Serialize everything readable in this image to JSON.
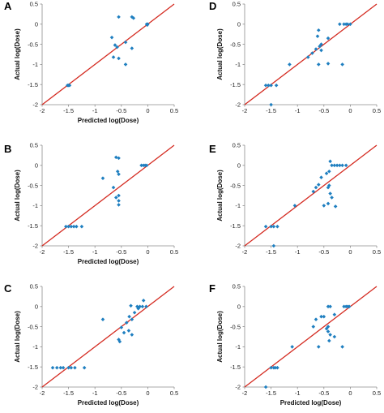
{
  "colors": {
    "marker": "#1f7fc0",
    "fit_line": "#d42a20",
    "axis": "#8c8c8c"
  },
  "chart_data": [
    {
      "panel": "A",
      "type": "scatter",
      "xlabel": "Predicted log(Dose)",
      "ylabel": "Actual log(Dose)",
      "xlim": [
        -2,
        0.5
      ],
      "ylim": [
        -2,
        0.5
      ],
      "xticks": [
        "-2",
        "-1.5",
        "-1",
        "-0.5",
        "0",
        "0.5"
      ],
      "yticks": [
        "-2",
        "-1.5",
        "-1",
        "-0.5",
        "0",
        "0.5"
      ],
      "fit_line": [
        [
          -2,
          -2
        ],
        [
          0.5,
          0.5
        ]
      ],
      "points": [
        [
          -1.52,
          -1.52
        ],
        [
          -1.5,
          -1.52
        ],
        [
          -1.48,
          -1.52
        ],
        [
          -0.68,
          -0.33
        ],
        [
          -0.62,
          -0.52
        ],
        [
          -0.58,
          -0.57
        ],
        [
          -0.65,
          -0.82
        ],
        [
          -0.55,
          -0.85
        ],
        [
          -0.55,
          0.18
        ],
        [
          -0.3,
          0.18
        ],
        [
          -0.27,
          0.15
        ],
        [
          -0.42,
          -0.45
        ],
        [
          -0.3,
          -0.6
        ],
        [
          -0.42,
          -1.0
        ],
        [
          -0.02,
          0.0
        ],
        [
          0.0,
          0.0
        ],
        [
          -0.01,
          -0.02
        ]
      ]
    },
    {
      "panel": "D",
      "type": "scatter",
      "xlabel": "",
      "ylabel": "Actual log(Dose)",
      "xlim": [
        -2,
        0.5
      ],
      "ylim": [
        -2,
        0.5
      ],
      "xticks": [
        "-2",
        "-1.5",
        "-1",
        "-0.5",
        "0",
        "0.5"
      ],
      "yticks": [
        "-2",
        "-1.5",
        "-1",
        "-0.5",
        "0",
        "0.5"
      ],
      "fit_line": [
        [
          -2,
          -2
        ],
        [
          0.5,
          0.5
        ]
      ],
      "points": [
        [
          -1.6,
          -1.52
        ],
        [
          -1.55,
          -1.52
        ],
        [
          -1.5,
          -1.52
        ],
        [
          -1.4,
          -1.52
        ],
        [
          -1.5,
          -2.0
        ],
        [
          -1.15,
          -1.0
        ],
        [
          -0.8,
          -0.82
        ],
        [
          -0.72,
          -0.72
        ],
        [
          -0.65,
          -0.62
        ],
        [
          -0.62,
          -0.3
        ],
        [
          -0.6,
          -0.15
        ],
        [
          -0.55,
          -0.5
        ],
        [
          -0.58,
          -0.55
        ],
        [
          -0.55,
          -0.65
        ],
        [
          -0.42,
          -0.35
        ],
        [
          -0.42,
          -0.98
        ],
        [
          -0.6,
          -1.0
        ],
        [
          -0.15,
          -1.0
        ],
        [
          -0.2,
          0.0
        ],
        [
          -0.12,
          0.0
        ],
        [
          -0.05,
          0.0
        ],
        [
          0.0,
          0.0
        ],
        [
          -0.08,
          0.0
        ]
      ]
    },
    {
      "panel": "B",
      "type": "scatter",
      "xlabel": "Predicted log(Dose)",
      "ylabel": "Actual log(Dose)",
      "xlim": [
        -2,
        0.5
      ],
      "ylim": [
        -2,
        0.5
      ],
      "xticks": [
        "-2",
        "-1.5",
        "-1",
        "-0.5",
        "0",
        "0.5"
      ],
      "yticks": [
        "-2",
        "-1.5",
        "-1",
        "-0.5",
        "0",
        "0.5"
      ],
      "fit_line": [
        [
          -2,
          -2
        ],
        [
          0.5,
          0.5
        ]
      ],
      "points": [
        [
          -1.55,
          -1.52
        ],
        [
          -1.5,
          -1.52
        ],
        [
          -1.45,
          -1.52
        ],
        [
          -1.4,
          -1.52
        ],
        [
          -1.35,
          -1.52
        ],
        [
          -1.25,
          -1.52
        ],
        [
          -0.85,
          -0.32
        ],
        [
          -0.65,
          -0.55
        ],
        [
          -0.6,
          0.2
        ],
        [
          -0.55,
          0.18
        ],
        [
          -0.57,
          -0.15
        ],
        [
          -0.55,
          -0.22
        ],
        [
          -0.55,
          -0.75
        ],
        [
          -0.6,
          -0.8
        ],
        [
          -0.55,
          -0.88
        ],
        [
          -0.55,
          -0.98
        ],
        [
          -0.12,
          0.0
        ],
        [
          -0.08,
          0.0
        ],
        [
          -0.05,
          0.0
        ],
        [
          -0.02,
          0.0
        ]
      ]
    },
    {
      "panel": "E",
      "type": "scatter",
      "xlabel": "",
      "ylabel": "Actual log(Dose)",
      "xlim": [
        -2,
        0.5
      ],
      "ylim": [
        -2,
        0.5
      ],
      "xticks": [
        "-2",
        "-1.5",
        "-1",
        "-0.5",
        "0",
        "0.5"
      ],
      "yticks": [
        "-2",
        "-1.5",
        "-1",
        "-0.5",
        "0",
        "0.5"
      ],
      "fit_line": [
        [
          -2,
          -2
        ],
        [
          0.5,
          0.5
        ]
      ],
      "points": [
        [
          -1.6,
          -1.52
        ],
        [
          -1.5,
          -1.52
        ],
        [
          -1.45,
          -1.52
        ],
        [
          -1.38,
          -1.52
        ],
        [
          -1.45,
          -2.0
        ],
        [
          -1.05,
          -1.0
        ],
        [
          -0.7,
          -0.65
        ],
        [
          -0.65,
          -0.55
        ],
        [
          -0.6,
          -0.48
        ],
        [
          -0.55,
          -0.3
        ],
        [
          -0.45,
          -0.2
        ],
        [
          -0.4,
          -0.15
        ],
        [
          -0.42,
          -0.55
        ],
        [
          -0.38,
          -0.7
        ],
        [
          -0.35,
          -0.8
        ],
        [
          -0.42,
          -0.95
        ],
        [
          -0.5,
          -1.0
        ],
        [
          -0.28,
          -1.02
        ],
        [
          -0.35,
          0.0
        ],
        [
          -0.3,
          0.0
        ],
        [
          -0.25,
          0.0
        ],
        [
          -0.2,
          0.0
        ],
        [
          -0.15,
          0.0
        ],
        [
          -0.08,
          0.0
        ],
        [
          -0.4,
          -0.5
        ],
        [
          -0.38,
          0.1
        ]
      ]
    },
    {
      "panel": "C",
      "type": "scatter",
      "xlabel": "Predicted log(Dose)",
      "ylabel": "Actual log(Dose)",
      "xlim": [
        -2,
        0.5
      ],
      "ylim": [
        -2,
        0.5
      ],
      "xticks": [
        "-2",
        "-1.5",
        "-1",
        "-0.5",
        "0",
        "0.5"
      ],
      "yticks": [
        "-2",
        "-1.5",
        "-1",
        "-0.5",
        "0",
        "0.5"
      ],
      "fit_line": [
        [
          -2,
          -2
        ],
        [
          0.5,
          0.5
        ]
      ],
      "points": [
        [
          -1.8,
          -1.52
        ],
        [
          -1.72,
          -1.52
        ],
        [
          -1.65,
          -1.52
        ],
        [
          -1.6,
          -1.52
        ],
        [
          -1.5,
          -1.52
        ],
        [
          -1.45,
          -1.52
        ],
        [
          -1.38,
          -1.52
        ],
        [
          -1.2,
          -1.52
        ],
        [
          -0.85,
          -0.32
        ],
        [
          -0.55,
          -0.82
        ],
        [
          -0.53,
          -0.87
        ],
        [
          -0.5,
          -0.52
        ],
        [
          -0.45,
          -0.65
        ],
        [
          -0.4,
          -0.4
        ],
        [
          -0.35,
          -0.25
        ],
        [
          -0.3,
          -0.7
        ],
        [
          -0.3,
          -0.32
        ],
        [
          -0.25,
          -0.15
        ],
        [
          -0.2,
          0.0
        ],
        [
          -0.18,
          -0.05
        ],
        [
          -0.15,
          0.0
        ],
        [
          -0.1,
          0.0
        ],
        [
          -0.08,
          0.15
        ],
        [
          -0.03,
          0.0
        ],
        [
          -0.32,
          0.02
        ],
        [
          -0.36,
          -0.6
        ]
      ]
    },
    {
      "panel": "F",
      "type": "scatter",
      "xlabel": "Predicted log(Dose)",
      "ylabel": "Actual log(Dose)",
      "xlim": [
        -2,
        0.5
      ],
      "ylim": [
        -2,
        0.5
      ],
      "xticks": [
        "-2",
        "-1.5",
        "-1",
        "-0.5",
        "0",
        "0.5"
      ],
      "yticks": [
        "-2",
        "-1.5",
        "-1",
        "-0.5",
        "0",
        "0.5"
      ],
      "fit_line": [
        [
          -2,
          -2
        ],
        [
          0.5,
          0.5
        ]
      ],
      "points": [
        [
          -1.6,
          -2.0
        ],
        [
          -1.5,
          -1.52
        ],
        [
          -1.45,
          -1.52
        ],
        [
          -1.42,
          -1.52
        ],
        [
          -1.38,
          -1.52
        ],
        [
          -1.1,
          -1.0
        ],
        [
          -0.7,
          -0.5
        ],
        [
          -0.65,
          -0.32
        ],
        [
          -0.55,
          -0.25
        ],
        [
          -0.5,
          -0.25
        ],
        [
          -0.6,
          -1.0
        ],
        [
          -0.45,
          -0.55
        ],
        [
          -0.42,
          -0.5
        ],
        [
          -0.42,
          -0.62
        ],
        [
          -0.38,
          -0.7
        ],
        [
          -0.4,
          -0.85
        ],
        [
          -0.3,
          -0.75
        ],
        [
          -0.15,
          -1.0
        ],
        [
          -0.42,
          0.0
        ],
        [
          -0.3,
          -0.2
        ],
        [
          -0.12,
          0.0
        ],
        [
          -0.08,
          0.0
        ],
        [
          -0.05,
          0.0
        ],
        [
          -0.02,
          0.0
        ],
        [
          -0.38,
          0.0
        ]
      ]
    }
  ]
}
